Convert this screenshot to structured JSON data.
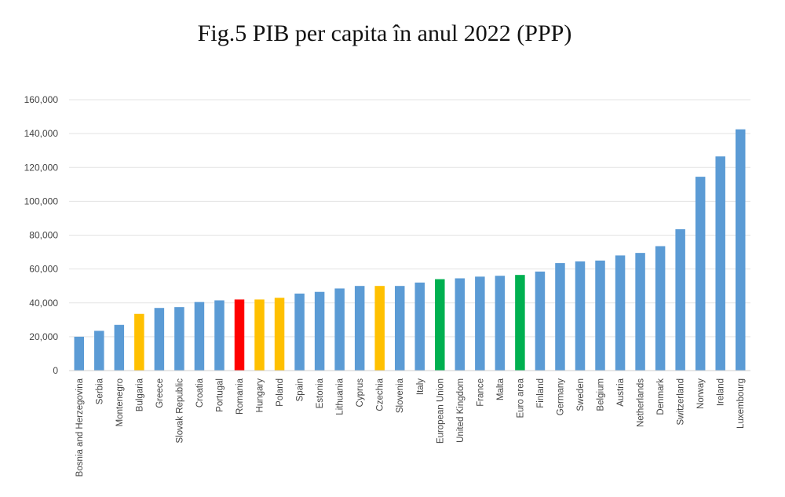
{
  "chart_data": {
    "type": "bar",
    "title": "Fig.5 PIB per capita în anul 2022 (PPP)",
    "xlabel": "",
    "ylabel": "",
    "ylim": [
      0,
      160000
    ],
    "yticks": [
      "0",
      "20,000",
      "40,000",
      "60,000",
      "80,000",
      "100,000",
      "120,000",
      "140,000",
      "160,000"
    ],
    "grid": true,
    "legend": "none",
    "colors": {
      "default": "#5b9bd5",
      "highlight_yellow": "#ffc000",
      "highlight_red": "#ff0000",
      "highlight_green": "#00b050"
    },
    "categories": [
      "Bosnia and Herzegovina",
      "Serbia",
      "Montenegro",
      "Bulgaria",
      "Greece",
      "Slovak Republic",
      "Croatia",
      "Portugal",
      "Romania",
      "Hungary",
      "Poland",
      "Spain",
      "Estonia",
      "Lithuania",
      "Cyprus",
      "Czechia",
      "Slovenia",
      "Italy",
      "European Union",
      "United Kingdom",
      "France",
      "Malta",
      "Euro area",
      "Finland",
      "Germany",
      "Sweden",
      "Belgium",
      "Austria",
      "Netherlands",
      "Denmark",
      "Switzerland",
      "Norway",
      "Ireland",
      "Luxembourg"
    ],
    "values": [
      20000,
      23500,
      27000,
      33500,
      37000,
      37500,
      40500,
      41500,
      42000,
      42000,
      43000,
      45500,
      46500,
      48500,
      50000,
      50000,
      50000,
      52000,
      54000,
      54500,
      55500,
      56000,
      56500,
      58500,
      63500,
      64500,
      65000,
      68000,
      69500,
      73500,
      83500,
      114500,
      126500,
      142500
    ],
    "bar_colors": [
      "#5b9bd5",
      "#5b9bd5",
      "#5b9bd5",
      "#ffc000",
      "#5b9bd5",
      "#5b9bd5",
      "#5b9bd5",
      "#5b9bd5",
      "#ff0000",
      "#ffc000",
      "#ffc000",
      "#5b9bd5",
      "#5b9bd5",
      "#5b9bd5",
      "#5b9bd5",
      "#ffc000",
      "#5b9bd5",
      "#5b9bd5",
      "#00b050",
      "#5b9bd5",
      "#5b9bd5",
      "#5b9bd5",
      "#00b050",
      "#5b9bd5",
      "#5b9bd5",
      "#5b9bd5",
      "#5b9bd5",
      "#5b9bd5",
      "#5b9bd5",
      "#5b9bd5",
      "#5b9bd5",
      "#5b9bd5",
      "#5b9bd5",
      "#5b9bd5"
    ]
  }
}
